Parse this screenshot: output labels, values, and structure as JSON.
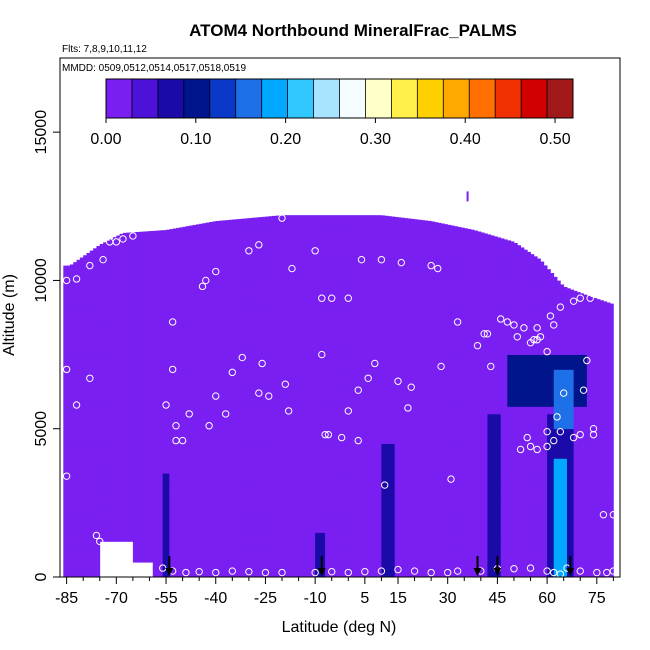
{
  "chart_data": {
    "type": "heatmap",
    "title": "ATOM4 Northbound MineralFrac_PALMS",
    "flights_label": "Flts: 7,8,9,10,11,12",
    "dates_label": "MMDD: 0509,0512,0514,0517,0518,0519",
    "xlabel": "Latitude (deg N)",
    "ylabel": "Altitude (m)",
    "xlim": [
      -87,
      82
    ],
    "ylim": [
      0,
      17500
    ],
    "x_ticks": [
      -85,
      -70,
      -55,
      -40,
      -25,
      -10,
      5,
      15,
      30,
      45,
      60,
      75
    ],
    "x_tick_labels": [
      "-85",
      "-70",
      "-55",
      "-40",
      "-25",
      "-10",
      "5",
      "15",
      "30",
      "45",
      "60",
      "75"
    ],
    "x_minor_ticks": [
      -80,
      -75,
      -65,
      -60,
      -50,
      -45,
      -35,
      -30,
      -20,
      -15,
      -5,
      0,
      10,
      20,
      25,
      35,
      40,
      50,
      55,
      65,
      70,
      80
    ],
    "y_ticks": [
      0,
      5000,
      10000,
      15000
    ],
    "y_tick_labels": [
      "0",
      "5000",
      "10000",
      "15000"
    ],
    "colorbar": {
      "range": [
        0,
        0.52
      ],
      "tick_values": [
        0.0,
        0.1,
        0.2,
        0.3,
        0.4,
        0.5
      ],
      "tick_labels": [
        "0.00",
        "0.10",
        "0.20",
        "0.30",
        "0.40",
        "0.50"
      ],
      "colors": [
        "#7a1ff2",
        "#4c12d8",
        "#1a0aa8",
        "#00148c",
        "#0a38c8",
        "#1e70e8",
        "#00a8ff",
        "#30c8ff",
        "#a8e4ff",
        "#f4fcff",
        "#ffffc8",
        "#fff04a",
        "#ffd000",
        "#ffa800",
        "#ff7000",
        "#f03000",
        "#d00000",
        "#a01818"
      ]
    },
    "field": {
      "background_value": 0.02,
      "altitude_ceiling_by_lat": [
        [
          -86,
          10500
        ],
        [
          -84,
          10500
        ],
        [
          -75,
          11200
        ],
        [
          -68,
          11600
        ],
        [
          -55,
          11700
        ],
        [
          -40,
          12000
        ],
        [
          -20,
          12200
        ],
        [
          -5,
          12200
        ],
        [
          10,
          12200
        ],
        [
          25,
          12000
        ],
        [
          38,
          11700
        ],
        [
          50,
          11300
        ],
        [
          58,
          10700
        ],
        [
          65,
          9800
        ],
        [
          72,
          9500
        ],
        [
          80,
          9200
        ]
      ],
      "surface_floor_by_lat": [
        [
          -86,
          0
        ],
        [
          -76,
          0
        ],
        [
          -75,
          1200
        ],
        [
          -66,
          1200
        ],
        [
          -65,
          500
        ],
        [
          -60,
          500
        ],
        [
          -59,
          0
        ],
        [
          80,
          0
        ]
      ],
      "enhanced_regions": [
        {
          "lat_range": [
            -56,
            -54
          ],
          "alt_range": [
            0,
            3500
          ],
          "value": 0.07
        },
        {
          "lat_range": [
            -10,
            -7
          ],
          "alt_range": [
            0,
            1500
          ],
          "value": 0.06
        },
        {
          "lat_range": [
            10,
            14
          ],
          "alt_range": [
            0,
            4500
          ],
          "value": 0.07
        },
        {
          "lat_range": [
            42,
            46
          ],
          "alt_range": [
            0,
            5500
          ],
          "value": 0.07
        },
        {
          "lat_range": [
            48,
            72
          ],
          "alt_range": [
            5800,
            7500
          ],
          "value": 0.09
        },
        {
          "lat_range": [
            62,
            68
          ],
          "alt_range": [
            5000,
            7000
          ],
          "value": 0.16
        },
        {
          "lat_range": [
            62,
            66
          ],
          "alt_range": [
            0,
            4000
          ],
          "value": 0.18
        },
        {
          "lat_range": [
            60,
            68
          ],
          "alt_range": [
            0,
            5500
          ],
          "value": 0.08
        }
      ],
      "trace_marker": {
        "lat": 36,
        "alt": 12800,
        "value": 0.02
      }
    },
    "observations": [
      [
        -85,
        10000
      ],
      [
        -82,
        10050
      ],
      [
        -78,
        10500
      ],
      [
        -74,
        10700
      ],
      [
        -72,
        11300
      ],
      [
        -70,
        11300
      ],
      [
        -68,
        11400
      ],
      [
        -65,
        11500
      ],
      [
        -82,
        5800
      ],
      [
        -78,
        6700
      ],
      [
        -85,
        7000
      ],
      [
        -85,
        3400
      ],
      [
        -76,
        1400
      ],
      [
        -75,
        1200
      ],
      [
        -53,
        8600
      ],
      [
        -53,
        7000
      ],
      [
        -55,
        5800
      ],
      [
        -52,
        4600
      ],
      [
        -50,
        4600
      ],
      [
        -52,
        5100
      ],
      [
        -48,
        5500
      ],
      [
        -43,
        10000
      ],
      [
        -44,
        9800
      ],
      [
        -40,
        10300
      ],
      [
        -42,
        5100
      ],
      [
        -40,
        6100
      ],
      [
        -37,
        5500
      ],
      [
        -35,
        6900
      ],
      [
        -32,
        7400
      ],
      [
        -30,
        11000
      ],
      [
        -27,
        11200
      ],
      [
        -26,
        7200
      ],
      [
        -24,
        6100
      ],
      [
        -27,
        6200
      ],
      [
        -20,
        12100
      ],
      [
        -19,
        6500
      ],
      [
        -17,
        10400
      ],
      [
        -18,
        5600
      ],
      [
        -10,
        11000
      ],
      [
        -8,
        9400
      ],
      [
        -5,
        9400
      ],
      [
        -8,
        7500
      ],
      [
        -7,
        4800
      ],
      [
        -6,
        4800
      ],
      [
        -2,
        4700
      ],
      [
        0,
        9400
      ],
      [
        0,
        5600
      ],
      [
        4,
        10700
      ],
      [
        3,
        4600
      ],
      [
        3,
        6300
      ],
      [
        6,
        6700
      ],
      [
        10,
        10700
      ],
      [
        8,
        7200
      ],
      [
        15,
        6600
      ],
      [
        16,
        10600
      ],
      [
        18,
        5700
      ],
      [
        19,
        6400
      ],
      [
        11,
        3100
      ],
      [
        25,
        10500
      ],
      [
        27,
        10400
      ],
      [
        28,
        7100
      ],
      [
        31,
        3300
      ],
      [
        33,
        8600
      ],
      [
        39,
        7800
      ],
      [
        41,
        8200
      ],
      [
        42,
        8200
      ],
      [
        43,
        7100
      ],
      [
        46,
        8700
      ],
      [
        48,
        8600
      ],
      [
        50,
        8500
      ],
      [
        51,
        8100
      ],
      [
        53,
        8400
      ],
      [
        55,
        7900
      ],
      [
        56,
        8000
      ],
      [
        57,
        8400
      ],
      [
        57,
        8000
      ],
      [
        58,
        8100
      ],
      [
        60,
        7600
      ],
      [
        61,
        8800
      ],
      [
        62,
        8500
      ],
      [
        64,
        9100
      ],
      [
        68,
        9300
      ],
      [
        70,
        9400
      ],
      [
        73,
        9400
      ],
      [
        72,
        7300
      ],
      [
        65,
        6200
      ],
      [
        63,
        5400
      ],
      [
        60,
        4900
      ],
      [
        60,
        4400
      ],
      [
        62,
        4600
      ],
      [
        55,
        4400
      ],
      [
        57,
        4300
      ],
      [
        54,
        4700
      ],
      [
        52,
        4300
      ],
      [
        64,
        4900
      ],
      [
        68,
        4700
      ],
      [
        70,
        4800
      ],
      [
        74,
        4800
      ],
      [
        74,
        5000
      ],
      [
        71,
        6300
      ],
      [
        69,
        10800
      ],
      [
        70,
        11000
      ],
      [
        71,
        10600
      ],
      [
        72,
        11200
      ],
      [
        68,
        10700
      ],
      [
        77,
        2100
      ],
      [
        80,
        2100
      ],
      [
        -56,
        300
      ],
      [
        -53,
        200
      ],
      [
        -49,
        150
      ],
      [
        -45,
        180
      ],
      [
        -40,
        150
      ],
      [
        -35,
        200
      ],
      [
        -30,
        180
      ],
      [
        -25,
        150
      ],
      [
        -20,
        150
      ],
      [
        -10,
        150
      ],
      [
        -5,
        180
      ],
      [
        0,
        150
      ],
      [
        5,
        180
      ],
      [
        10,
        200
      ],
      [
        15,
        250
      ],
      [
        20,
        200
      ],
      [
        25,
        150
      ],
      [
        30,
        150
      ],
      [
        33,
        200
      ],
      [
        40,
        200
      ],
      [
        45,
        280
      ],
      [
        50,
        280
      ],
      [
        55,
        300
      ],
      [
        60,
        200
      ],
      [
        62,
        150
      ],
      [
        64,
        100
      ],
      [
        66,
        300
      ],
      [
        70,
        200
      ],
      [
        75,
        150
      ],
      [
        78,
        150
      ],
      [
        80,
        200
      ]
    ],
    "flight_arrows": [
      -54,
      -8,
      39,
      45,
      67
    ]
  }
}
